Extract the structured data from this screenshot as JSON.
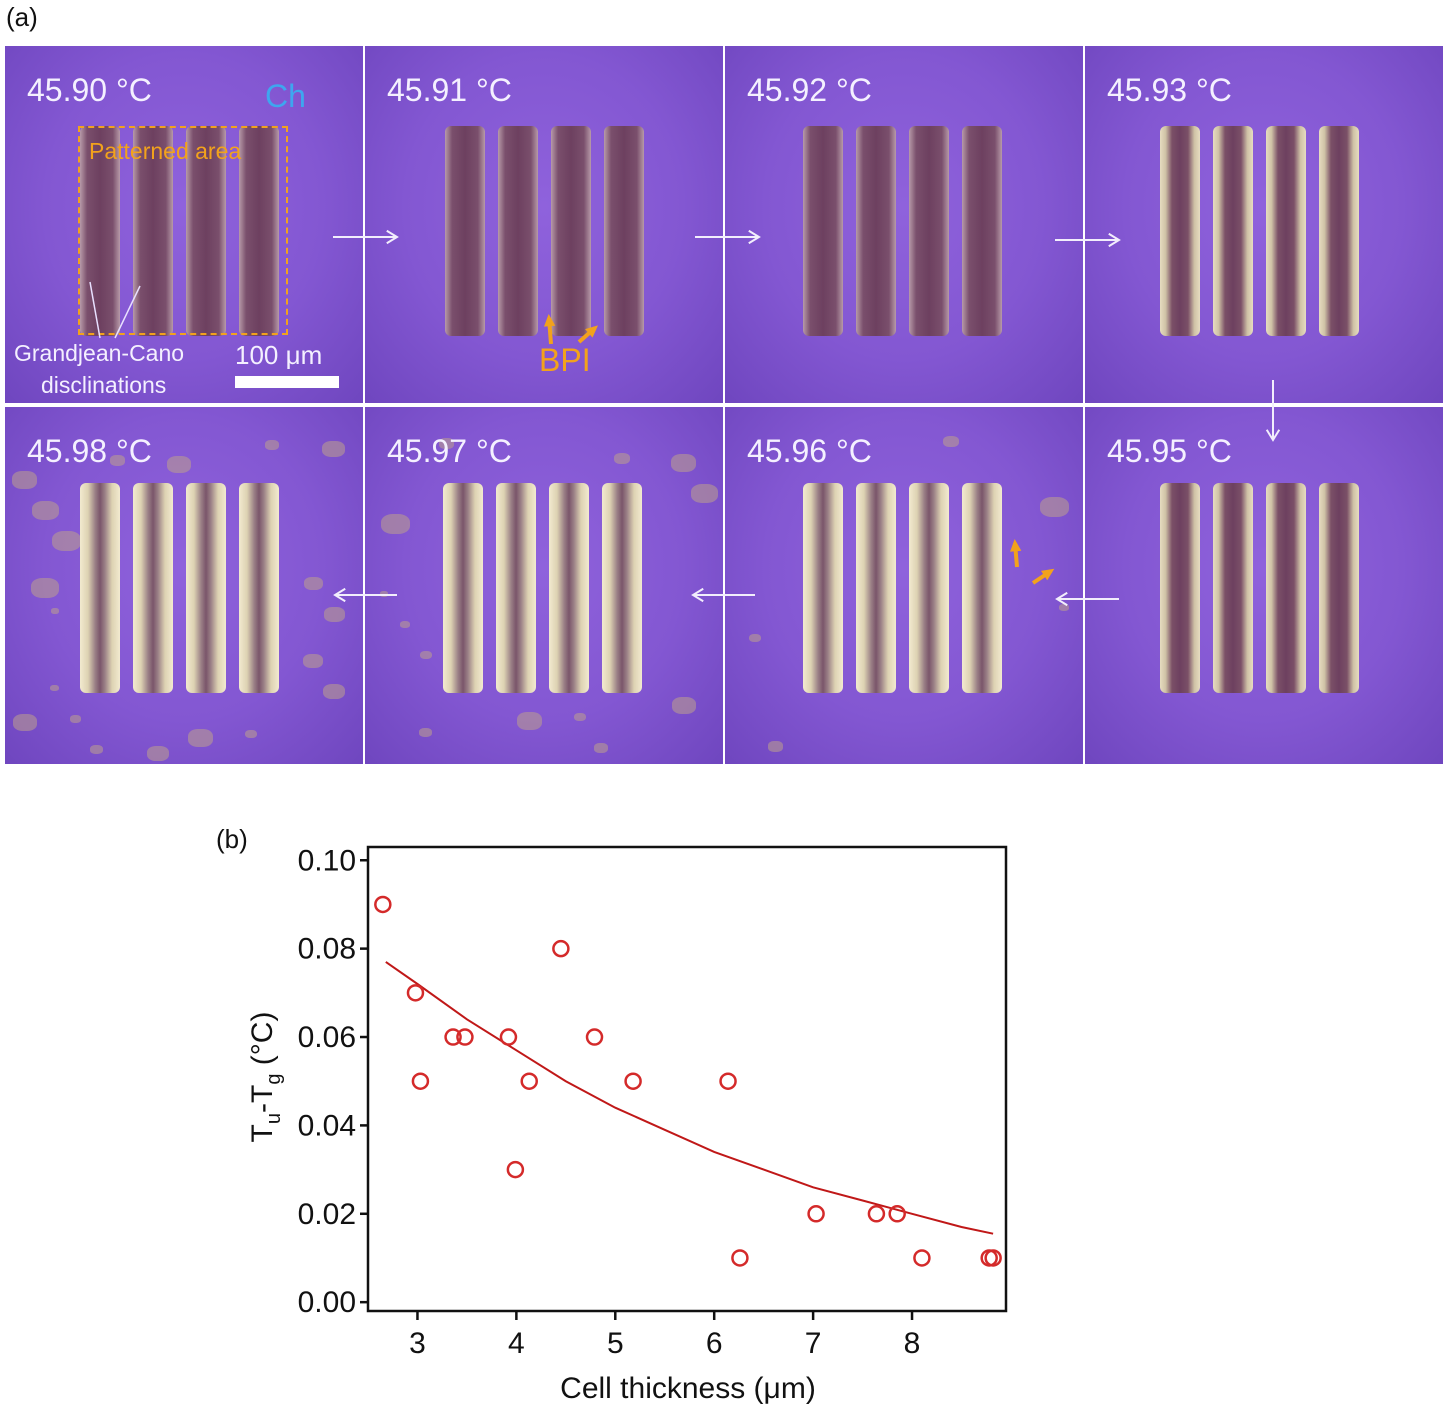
{
  "panel_a": {
    "label": "(a)",
    "temperatures": [
      "45.90 °C",
      "45.91 °C",
      "45.92 °C",
      "45.93 °C",
      "45.95 °C",
      "45.96 °C",
      "45.97 °C",
      "45.98 °C"
    ],
    "annotations": {
      "ch": "Ch",
      "patterned_area": "Patterned area",
      "disclinations_line1": "Grandjean-Cano",
      "disclinations_line2": "disclinations",
      "scale_bar": "100 μm",
      "bpi": "BPI"
    },
    "colors": {
      "background": "#8357d2",
      "annotation_orange": "#f2a21c",
      "ch_blue": "#3ea6ef"
    }
  },
  "panel_b": {
    "label": "(b)"
  },
  "chart_data": {
    "type": "scatter",
    "xlabel": "Cell thickness (μm)",
    "ylabel_main": "T",
    "ylabel_sub1": "u",
    "ylabel_mid": "-T",
    "ylabel_sub2": "g",
    "ylabel_unit": " (°C)",
    "xlim": [
      2.5,
      8.95
    ],
    "ylim": [
      -0.002,
      0.103
    ],
    "xticks": [
      3,
      4,
      5,
      6,
      7,
      8
    ],
    "yticks": [
      0.0,
      0.02,
      0.04,
      0.06,
      0.08,
      0.1
    ],
    "ytick_labels": [
      "0.00",
      "0.02",
      "0.04",
      "0.06",
      "0.08",
      "0.10"
    ],
    "points": [
      {
        "x": 2.65,
        "y": 0.09
      },
      {
        "x": 2.98,
        "y": 0.07
      },
      {
        "x": 3.03,
        "y": 0.05
      },
      {
        "x": 3.36,
        "y": 0.06
      },
      {
        "x": 3.48,
        "y": 0.06
      },
      {
        "x": 3.92,
        "y": 0.06
      },
      {
        "x": 3.99,
        "y": 0.03
      },
      {
        "x": 4.13,
        "y": 0.05
      },
      {
        "x": 4.45,
        "y": 0.08
      },
      {
        "x": 4.79,
        "y": 0.06
      },
      {
        "x": 5.18,
        "y": 0.05
      },
      {
        "x": 6.14,
        "y": 0.05
      },
      {
        "x": 6.26,
        "y": 0.01
      },
      {
        "x": 7.03,
        "y": 0.02
      },
      {
        "x": 7.64,
        "y": 0.02
      },
      {
        "x": 7.85,
        "y": 0.02
      },
      {
        "x": 8.1,
        "y": 0.01
      },
      {
        "x": 8.78,
        "y": 0.01
      },
      {
        "x": 8.82,
        "y": 0.01
      }
    ],
    "fit_curve": [
      {
        "x": 2.68,
        "y": 0.077
      },
      {
        "x": 3.0,
        "y": 0.072
      },
      {
        "x": 3.5,
        "y": 0.064
      },
      {
        "x": 4.0,
        "y": 0.057
      },
      {
        "x": 4.5,
        "y": 0.05
      },
      {
        "x": 5.0,
        "y": 0.044
      },
      {
        "x": 5.5,
        "y": 0.039
      },
      {
        "x": 6.0,
        "y": 0.034
      },
      {
        "x": 6.5,
        "y": 0.03
      },
      {
        "x": 7.0,
        "y": 0.026
      },
      {
        "x": 7.5,
        "y": 0.023
      },
      {
        "x": 8.0,
        "y": 0.02
      },
      {
        "x": 8.5,
        "y": 0.017
      },
      {
        "x": 8.82,
        "y": 0.0155
      }
    ],
    "marker_color": "#d42a2a",
    "line_color": "#c01818"
  }
}
